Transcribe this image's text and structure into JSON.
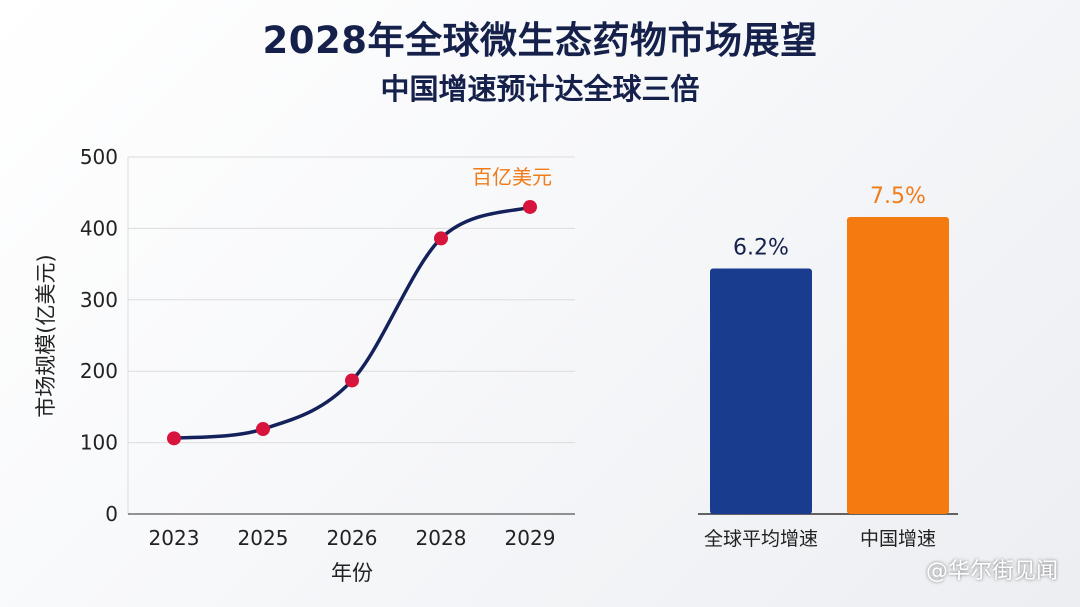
{
  "title": "2028年全球微生态药物市场展望",
  "subtitle": "中国增速预计达全球三倍",
  "watermark": "@华尔街见闻",
  "chart_data": [
    {
      "type": "line",
      "categories": [
        "2023",
        "2025",
        "2026",
        "2028",
        "2029"
      ],
      "values": [
        106,
        119,
        187,
        386,
        430
      ],
      "ylim": [
        0,
        500
      ],
      "yticks": [
        0,
        100,
        200,
        300,
        400,
        500
      ],
      "xlabel": "年份",
      "ylabel": "市场规模(亿美元)",
      "annotation": "百亿美元",
      "grid": true,
      "colors": {
        "line": "#14215a",
        "marker": "#d6143c",
        "annotation": "#f07c1a"
      }
    },
    {
      "type": "bar",
      "categories": [
        "全球平均增速",
        "中国增速"
      ],
      "values": [
        6.2,
        7.5
      ],
      "labels": [
        "6.2%",
        "7.5%"
      ],
      "colors": [
        "#1a3c8f",
        "#f57a10"
      ],
      "label_colors": [
        "#15214a",
        "#f07c1a"
      ]
    }
  ]
}
